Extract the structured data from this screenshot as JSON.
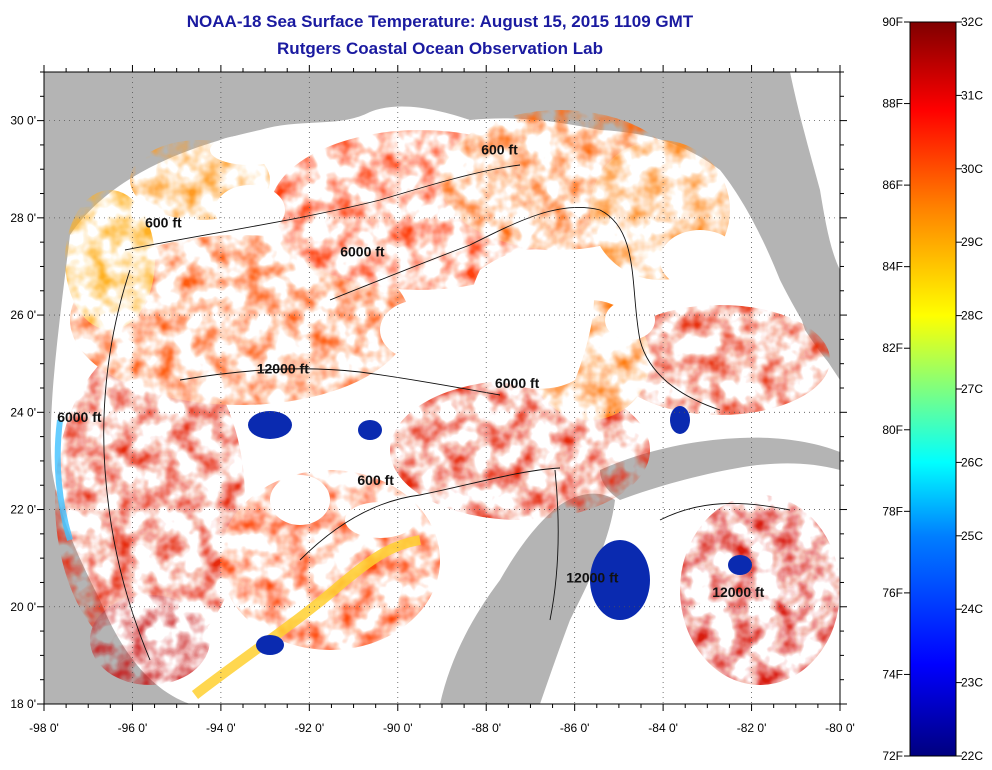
{
  "header": {
    "title_line1": "NOAA-18 Sea Surface Temperature:  August 15, 2015 1109 GMT",
    "title_line2": "Rutgers Coastal Ocean Observation Lab"
  },
  "map": {
    "lat_ticks": [
      "18 0'",
      "20 0'",
      "22 0'",
      "24 0'",
      "26 0'",
      "28 0'",
      "30 0'"
    ],
    "lon_ticks": [
      "-98 0'",
      "-96 0'",
      "-94 0'",
      "-92 0'",
      "-90 0'",
      "-88 0'",
      "-86 0'",
      "-84 0'",
      "-82 0'",
      "-80 0'"
    ],
    "lat_range": [
      18,
      31
    ],
    "lon_range": [
      -98,
      -80
    ],
    "contour_labels": [
      {
        "text": "600 ft",
        "lon": -95.3,
        "lat": 27.8
      },
      {
        "text": "6000 ft",
        "lon": -90.8,
        "lat": 27.2
      },
      {
        "text": "600 ft",
        "lon": -87.7,
        "lat": 29.3
      },
      {
        "text": "12000 ft",
        "lon": -92.6,
        "lat": 24.8
      },
      {
        "text": "6000 ft",
        "lon": -97.2,
        "lat": 23.8
      },
      {
        "text": "6000 ft",
        "lon": -87.3,
        "lat": 24.5
      },
      {
        "text": "600 ft",
        "lon": -90.5,
        "lat": 22.5
      },
      {
        "text": "12000 ft",
        "lon": -85.6,
        "lat": 20.5
      },
      {
        "text": "12000 ft",
        "lon": -82.3,
        "lat": 20.2
      }
    ],
    "colors": {
      "land": "#b4b4b4",
      "no_data": "#ffffff",
      "warm": "#e62a10",
      "hot": "#c81010",
      "mid": "#ff7a10",
      "cool": "#ffd020"
    }
  },
  "colorbar": {
    "fahrenheit_labels": [
      "90F",
      "88F",
      "86F",
      "84F",
      "82F",
      "80F",
      "78F",
      "76F",
      "74F",
      "72F"
    ],
    "celsius_labels": [
      "32C",
      "31C",
      "30C",
      "29C",
      "28C",
      "27C",
      "26C",
      "25C",
      "24C",
      "23C",
      "22C"
    ],
    "range_c": [
      22,
      32
    ],
    "range_f": [
      72,
      90
    ],
    "stops": [
      "#00007f",
      "#0000ff",
      "#007fff",
      "#00ffff",
      "#7fff7f",
      "#ffff00",
      "#ff7f00",
      "#ff0000",
      "#7f0000"
    ]
  }
}
